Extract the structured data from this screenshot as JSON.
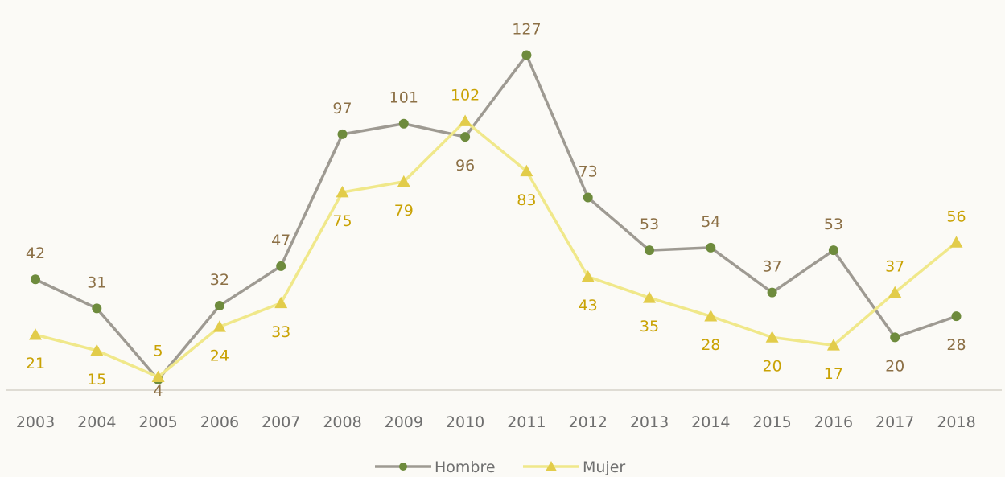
{
  "chart_data": {
    "type": "line",
    "categories": [
      "2003",
      "2004",
      "2005",
      "2006",
      "2007",
      "2008",
      "2009",
      "2010",
      "2011",
      "2012",
      "2013",
      "2014",
      "2015",
      "2016",
      "2017",
      "2018"
    ],
    "series": [
      {
        "name": "Hombre",
        "values": [
          42,
          31,
          4,
          32,
          47,
          97,
          101,
          96,
          127,
          73,
          53,
          54,
          37,
          53,
          20,
          28
        ],
        "color": "#9e9a92",
        "marker_color": "#6e8b3d",
        "label_color": "#8c7046",
        "marker": "circle"
      },
      {
        "name": "Mujer",
        "values": [
          21,
          15,
          5,
          24,
          33,
          75,
          79,
          102,
          83,
          43,
          35,
          28,
          20,
          17,
          37,
          56
        ],
        "color": "#f0e88a",
        "marker_color": "#e2cc4a",
        "label_color": "#c9a204",
        "marker": "triangle"
      }
    ],
    "title": "",
    "xlabel": "",
    "ylabel": "",
    "ylim": [
      0,
      140
    ],
    "grid": false,
    "legend": "bottom-center"
  }
}
